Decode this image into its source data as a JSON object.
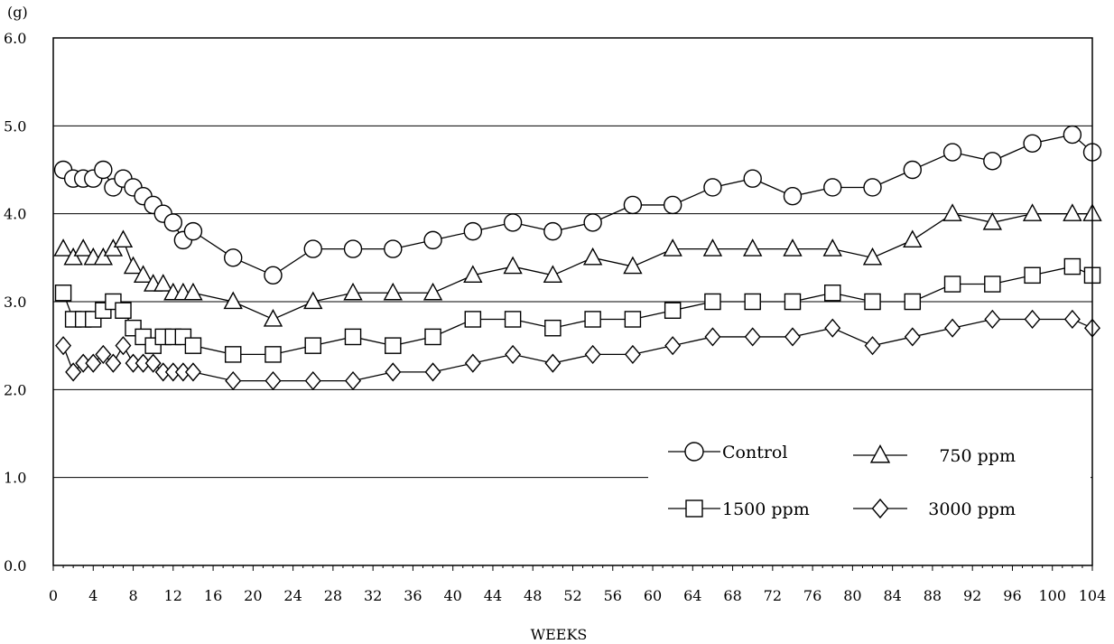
{
  "chart_data": {
    "type": "line",
    "title": "",
    "ylabel": "(g)",
    "xlabel": "WEEKS",
    "ylim": [
      0,
      6
    ],
    "xlim": [
      0,
      104
    ],
    "yticks": [
      "0.0",
      "1.0",
      "2.0",
      "3.0",
      "4.0",
      "5.0",
      "6.0"
    ],
    "xticks": [
      "0",
      "4",
      "8",
      "12",
      "16",
      "20",
      "24",
      "28",
      "32",
      "36",
      "40",
      "44",
      "48",
      "52",
      "56",
      "60",
      "64",
      "68",
      "72",
      "76",
      "80",
      "84",
      "88",
      "92",
      "96",
      "100",
      "104"
    ],
    "grid": true,
    "legend_position": "bottom-right",
    "series": [
      {
        "name": "Control",
        "marker": "circle",
        "points": [
          [
            1,
            4.5
          ],
          [
            2,
            4.4
          ],
          [
            3,
            4.4
          ],
          [
            4,
            4.4
          ],
          [
            5,
            4.5
          ],
          [
            6,
            4.3
          ],
          [
            7,
            4.4
          ],
          [
            8,
            4.3
          ],
          [
            9,
            4.2
          ],
          [
            10,
            4.1
          ],
          [
            11,
            4.0
          ],
          [
            12,
            3.9
          ],
          [
            13,
            3.7
          ],
          [
            14,
            3.8
          ],
          [
            18,
            3.5
          ],
          [
            22,
            3.3
          ],
          [
            26,
            3.6
          ],
          [
            30,
            3.6
          ],
          [
            34,
            3.6
          ],
          [
            38,
            3.7
          ],
          [
            42,
            3.8
          ],
          [
            46,
            3.9
          ],
          [
            50,
            3.8
          ],
          [
            54,
            3.9
          ],
          [
            58,
            4.1
          ],
          [
            62,
            4.1
          ],
          [
            66,
            4.3
          ],
          [
            70,
            4.4
          ],
          [
            74,
            4.2
          ],
          [
            78,
            4.3
          ],
          [
            82,
            4.3
          ],
          [
            86,
            4.5
          ],
          [
            90,
            4.7
          ],
          [
            94,
            4.6
          ],
          [
            98,
            4.8
          ],
          [
            102,
            4.9
          ],
          [
            104,
            4.7
          ]
        ]
      },
      {
        "name": "750 ppm",
        "marker": "triangle",
        "points": [
          [
            1,
            3.6
          ],
          [
            2,
            3.5
          ],
          [
            3,
            3.6
          ],
          [
            4,
            3.5
          ],
          [
            5,
            3.5
          ],
          [
            6,
            3.6
          ],
          [
            7,
            3.7
          ],
          [
            8,
            3.4
          ],
          [
            9,
            3.3
          ],
          [
            10,
            3.2
          ],
          [
            11,
            3.2
          ],
          [
            12,
            3.1
          ],
          [
            13,
            3.1
          ],
          [
            14,
            3.1
          ],
          [
            18,
            3.0
          ],
          [
            22,
            2.8
          ],
          [
            26,
            3.0
          ],
          [
            30,
            3.1
          ],
          [
            34,
            3.1
          ],
          [
            38,
            3.1
          ],
          [
            42,
            3.3
          ],
          [
            46,
            3.4
          ],
          [
            50,
            3.3
          ],
          [
            54,
            3.5
          ],
          [
            58,
            3.4
          ],
          [
            62,
            3.6
          ],
          [
            66,
            3.6
          ],
          [
            70,
            3.6
          ],
          [
            74,
            3.6
          ],
          [
            78,
            3.6
          ],
          [
            82,
            3.5
          ],
          [
            86,
            3.7
          ],
          [
            90,
            4.0
          ],
          [
            94,
            3.9
          ],
          [
            98,
            4.0
          ],
          [
            102,
            4.0
          ],
          [
            104,
            4.0
          ]
        ]
      },
      {
        "name": "1500 ppm",
        "marker": "square",
        "points": [
          [
            1,
            3.1
          ],
          [
            2,
            2.8
          ],
          [
            3,
            2.8
          ],
          [
            4,
            2.8
          ],
          [
            5,
            2.9
          ],
          [
            6,
            3.0
          ],
          [
            7,
            2.9
          ],
          [
            8,
            2.7
          ],
          [
            9,
            2.6
          ],
          [
            10,
            2.5
          ],
          [
            11,
            2.6
          ],
          [
            12,
            2.6
          ],
          [
            13,
            2.6
          ],
          [
            14,
            2.5
          ],
          [
            18,
            2.4
          ],
          [
            22,
            2.4
          ],
          [
            26,
            2.5
          ],
          [
            30,
            2.6
          ],
          [
            34,
            2.5
          ],
          [
            38,
            2.6
          ],
          [
            42,
            2.8
          ],
          [
            46,
            2.8
          ],
          [
            50,
            2.7
          ],
          [
            54,
            2.8
          ],
          [
            58,
            2.8
          ],
          [
            62,
            2.9
          ],
          [
            66,
            3.0
          ],
          [
            70,
            3.0
          ],
          [
            74,
            3.0
          ],
          [
            78,
            3.1
          ],
          [
            82,
            3.0
          ],
          [
            86,
            3.0
          ],
          [
            90,
            3.2
          ],
          [
            94,
            3.2
          ],
          [
            98,
            3.3
          ],
          [
            102,
            3.4
          ],
          [
            104,
            3.3
          ]
        ]
      },
      {
        "name": "3000 ppm",
        "marker": "diamond",
        "points": [
          [
            1,
            2.5
          ],
          [
            2,
            2.2
          ],
          [
            3,
            2.3
          ],
          [
            4,
            2.3
          ],
          [
            5,
            2.4
          ],
          [
            6,
            2.3
          ],
          [
            7,
            2.5
          ],
          [
            8,
            2.3
          ],
          [
            9,
            2.3
          ],
          [
            10,
            2.3
          ],
          [
            11,
            2.2
          ],
          [
            12,
            2.2
          ],
          [
            13,
            2.2
          ],
          [
            14,
            2.2
          ],
          [
            18,
            2.1
          ],
          [
            22,
            2.1
          ],
          [
            26,
            2.1
          ],
          [
            30,
            2.1
          ],
          [
            34,
            2.2
          ],
          [
            38,
            2.2
          ],
          [
            42,
            2.3
          ],
          [
            46,
            2.4
          ],
          [
            50,
            2.3
          ],
          [
            54,
            2.4
          ],
          [
            58,
            2.4
          ],
          [
            62,
            2.5
          ],
          [
            66,
            2.6
          ],
          [
            70,
            2.6
          ],
          [
            74,
            2.6
          ],
          [
            78,
            2.7
          ],
          [
            82,
            2.5
          ],
          [
            86,
            2.6
          ],
          [
            90,
            2.7
          ],
          [
            94,
            2.8
          ],
          [
            98,
            2.8
          ],
          [
            102,
            2.8
          ],
          [
            104,
            2.7
          ]
        ]
      }
    ],
    "colors": {
      "line": "#000000",
      "grid": "#000000",
      "marker_fill": "#ffffff"
    }
  }
}
